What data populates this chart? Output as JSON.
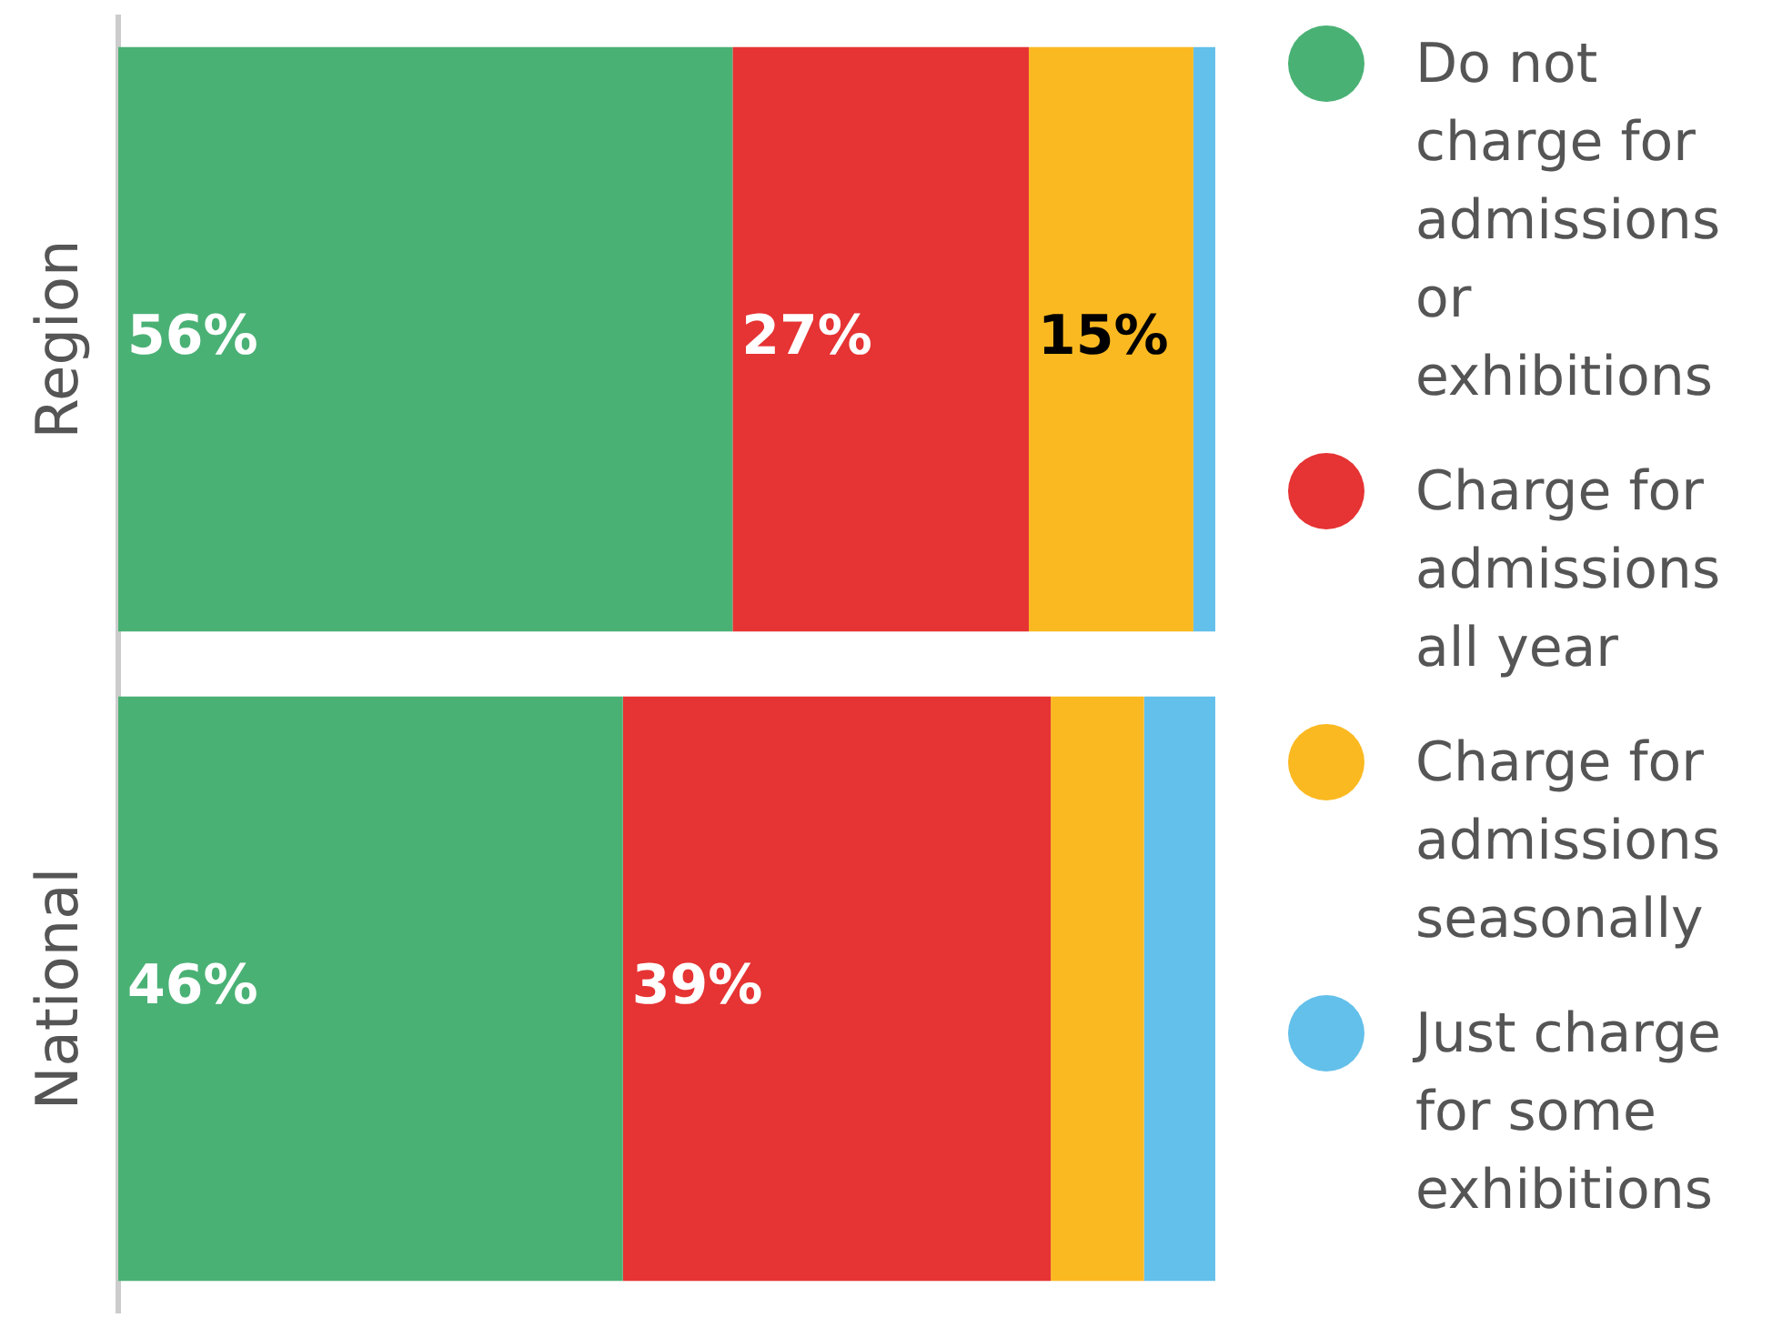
{
  "chart_data": {
    "type": "bar",
    "orientation": "horizontal",
    "stacked": true,
    "categories": [
      "Region",
      "National"
    ],
    "series": [
      {
        "name": "Do not charge for admissions or exhibitions",
        "color": "#4ab175",
        "values": [
          56,
          46
        ],
        "value_labels": [
          "56%",
          "46%"
        ]
      },
      {
        "name": "Charge for admissions all year",
        "color": "#e63333",
        "values": [
          27,
          39
        ],
        "value_labels": [
          "27%",
          "39%"
        ]
      },
      {
        "name": "Charge for admissions seasonally",
        "color": "#fbb921",
        "values": [
          15,
          8.5
        ],
        "value_labels": [
          "15%",
          null
        ]
      },
      {
        "name": "Just charge for some exhibitions",
        "color": "#63c0ea",
        "values": [
          2,
          6.5
        ],
        "value_labels": [
          null,
          null
        ]
      }
    ],
    "legend": "right",
    "grid": false
  }
}
